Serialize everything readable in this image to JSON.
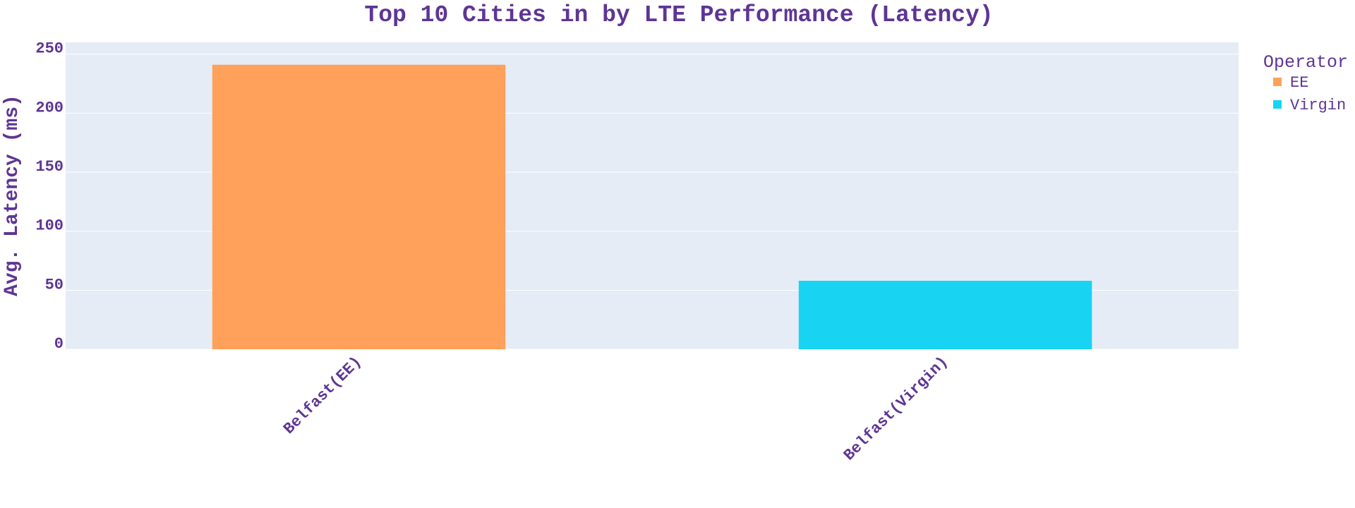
{
  "theme": {
    "text_color": "#5e3594",
    "plot_bg": "#e5ecf6",
    "grid_color": "#ffffff"
  },
  "chart_data": {
    "type": "bar",
    "title": "Top 10 Cities in by LTE Performance (Latency)",
    "xlabel": "",
    "ylabel": "Avg. Latency (ms)",
    "ylim": [
      0,
      250
    ],
    "yticks": [
      0,
      50,
      100,
      150,
      200,
      250
    ],
    "grid": true,
    "categories": [
      "Belfast(EE)",
      "Belfast(Virgin)"
    ],
    "series": [
      {
        "name": "EE",
        "color": "#ffa15a",
        "values": [
          241,
          null
        ]
      },
      {
        "name": "Virgin",
        "color": "#19d3f3",
        "values": [
          null,
          58
        ]
      }
    ],
    "legend": {
      "title": "Operator",
      "position": "top-right"
    }
  }
}
